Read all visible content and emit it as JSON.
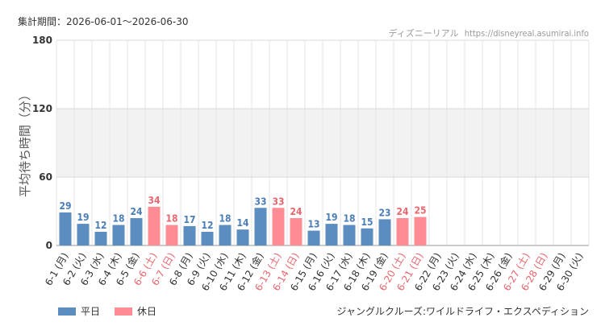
{
  "header": {
    "period": "集計期間：2026-06-01〜2026-06-30",
    "source_name": "ディズニーリアル",
    "source_url": "https://disneyreal.asumirai.info"
  },
  "footer": {
    "attraction": "ジャングルクルーズ:ワイルドライフ・エクスペディション"
  },
  "colors": {
    "weekday": "#5b8dc1",
    "holiday": "#ff8c94",
    "holiday_label": "#e8676f",
    "band": "#f2f2f2",
    "grid": "#e6e6e6"
  },
  "chart_data": {
    "type": "bar",
    "ylabel": "平均待ち時間（分）",
    "ylim": [
      0,
      180
    ],
    "yticks": [
      0,
      60,
      120,
      180
    ],
    "grid": true,
    "legend": [
      {
        "name": "平日",
        "color": "#5b8dc1"
      },
      {
        "name": "休日",
        "color": "#ff8c94"
      }
    ],
    "legend_position": "bottom-left",
    "categories": [
      "6-1 (月)",
      "6-2 (火)",
      "6-3 (水)",
      "6-4 (木)",
      "6-5 (金)",
      "6-6 (土)",
      "6-7 (日)",
      "6-8 (月)",
      "6-9 (火)",
      "6-10 (水)",
      "6-11 (木)",
      "6-12 (金)",
      "6-13 (土)",
      "6-14 (日)",
      "6-15 (月)",
      "6-16 (火)",
      "6-17 (水)",
      "6-18 (木)",
      "6-19 (金)",
      "6-20 (土)",
      "6-21 (日)",
      "6-22 (月)",
      "6-23 (火)",
      "6-24 (水)",
      "6-25 (木)",
      "6-26 (金)",
      "6-27 (土)",
      "6-28 (日)",
      "6-29 (月)",
      "6-30 (火)"
    ],
    "day_type": [
      "平日",
      "平日",
      "平日",
      "平日",
      "平日",
      "休日",
      "休日",
      "平日",
      "平日",
      "平日",
      "平日",
      "平日",
      "休日",
      "休日",
      "平日",
      "平日",
      "平日",
      "平日",
      "平日",
      "休日",
      "休日",
      "平日",
      "平日",
      "平日",
      "平日",
      "平日",
      "休日",
      "休日",
      "平日",
      "平日"
    ],
    "values": [
      29,
      19,
      12,
      18,
      24,
      34,
      18,
      17,
      12,
      18,
      14,
      33,
      33,
      24,
      13,
      19,
      18,
      15,
      23,
      24,
      25,
      null,
      null,
      null,
      null,
      null,
      null,
      null,
      null,
      null
    ]
  }
}
